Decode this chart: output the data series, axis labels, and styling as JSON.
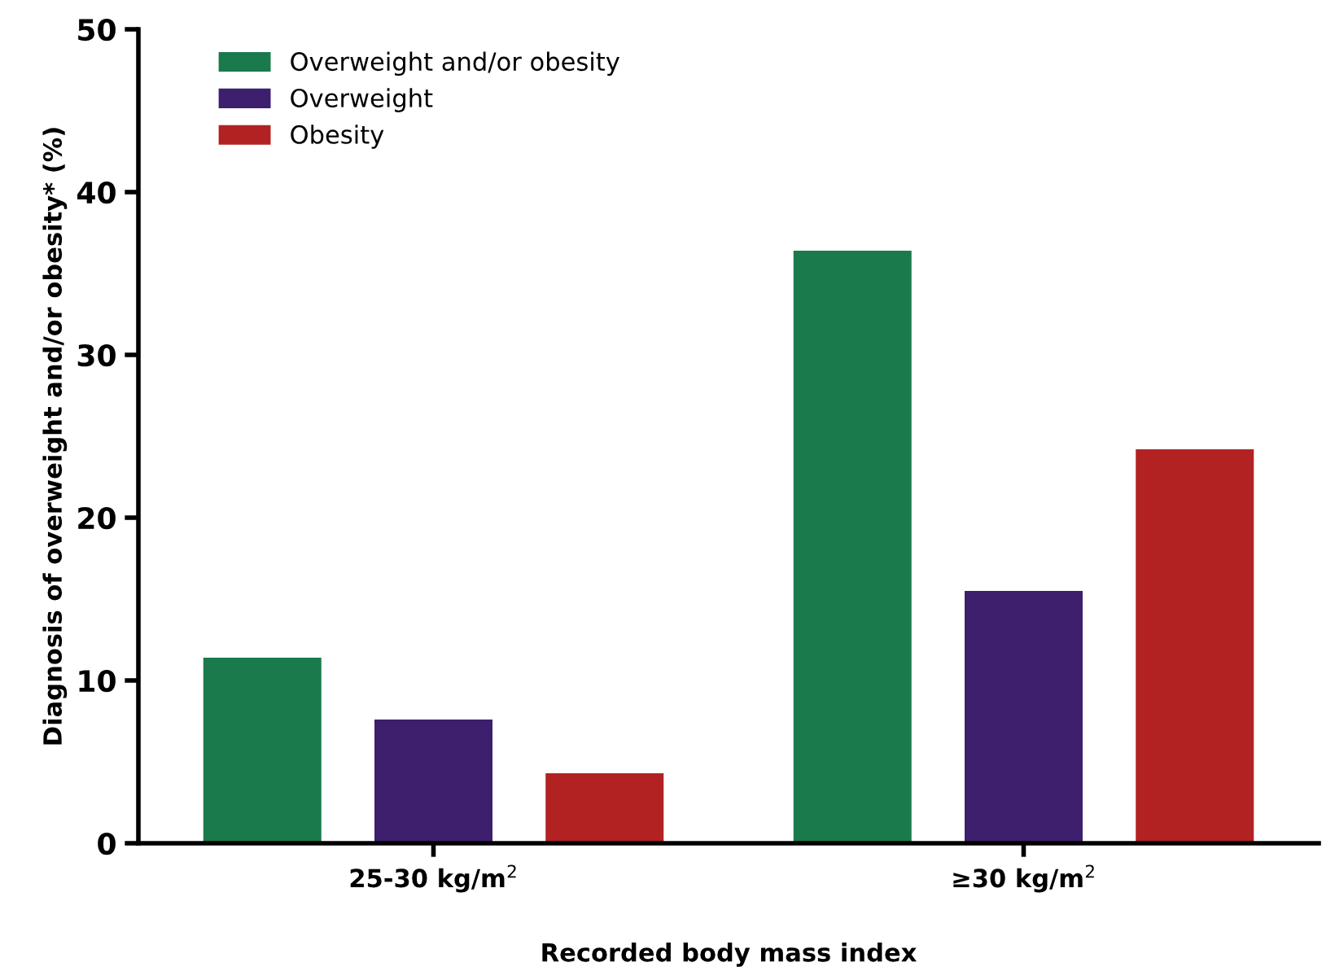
{
  "chart_data": {
    "type": "bar",
    "xlabel": "Recorded body mass index",
    "ylabel": "Diagnosis of overweight and/or obesity* (%)",
    "categories": [
      "25-30 kg/m$^{2}$",
      "≥30 kg/m$^{2}$"
    ],
    "series": [
      {
        "name": "Overweight and/or obesity",
        "color": "#1a7a4c",
        "values": [
          11.4,
          36.4
        ]
      },
      {
        "name": "Overweight",
        "color": "#3d1f6e",
        "values": [
          7.6,
          15.5
        ]
      },
      {
        "name": "Obesity",
        "color": "#b22222",
        "values": [
          4.3,
          24.2
        ]
      }
    ],
    "ylim": [
      0,
      50
    ],
    "yticks": [
      0,
      10,
      20,
      30,
      40,
      50
    ],
    "grid": false,
    "legend": "top left"
  }
}
